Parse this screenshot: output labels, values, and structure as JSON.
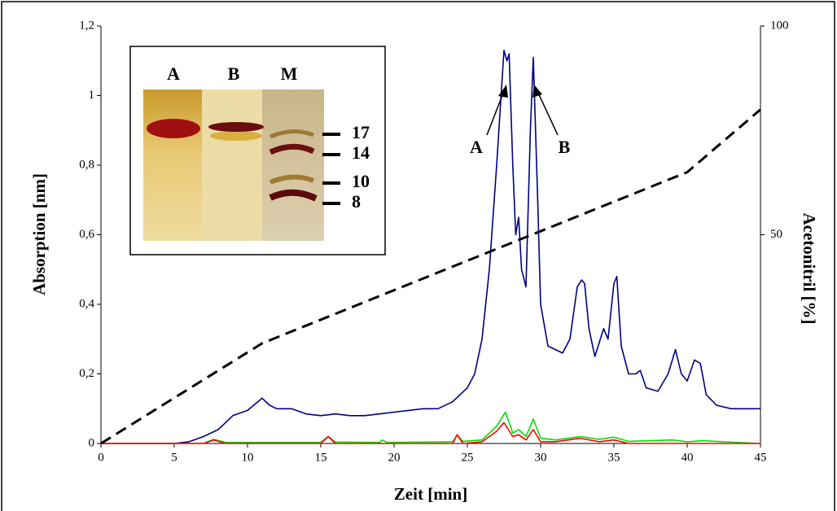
{
  "chart_data": {
    "type": "line",
    "xlabel": "Zeit [min]",
    "ylabel": "Absorption [nm]",
    "y2label": "Acetonitril [%]",
    "xlim": [
      0,
      45
    ],
    "xticks": [
      0,
      5,
      10,
      15,
      20,
      25,
      30,
      35,
      40,
      45
    ],
    "ylim": [
      0,
      1.2
    ],
    "yticks": [
      0,
      {
        "value": 0.2,
        "label": "0,2"
      },
      {
        "value": 0.4,
        "label": "0,4"
      },
      {
        "value": 0.6,
        "label": "0,6"
      },
      {
        "value": 0.8,
        "label": "0,8"
      },
      1,
      {
        "value": 1.2,
        "label": "1,2"
      }
    ],
    "y2lim": [
      0,
      100
    ],
    "y2ticks": [
      50,
      100
    ],
    "series": [
      {
        "color": "#000080",
        "dash": false,
        "x": [
          0,
          5,
          6,
          7,
          8,
          9,
          10,
          11,
          11.5,
          12,
          13,
          14,
          15,
          16,
          17,
          18,
          19,
          20,
          21,
          22,
          23,
          24,
          25,
          25.5,
          26,
          26.5,
          27,
          27.3,
          27.5,
          27.7,
          27.85,
          28.1,
          28.3,
          28.5,
          28.7,
          29,
          29.3,
          29.5,
          29.8,
          30,
          30.5,
          31,
          31.5,
          32,
          32.5,
          32.8,
          33,
          33.3,
          33.7,
          34,
          34.3,
          34.6,
          35,
          35.2,
          35.5,
          36,
          36.5,
          36.8,
          37.2,
          38,
          38.7,
          39.2,
          39.6,
          40,
          40.5,
          40.9,
          41.3,
          42,
          43,
          44,
          45
        ],
        "values": [
          0,
          0,
          0.005,
          0.02,
          0.04,
          0.08,
          0.095,
          0.13,
          0.11,
          0.1,
          0.1,
          0.085,
          0.08,
          0.085,
          0.08,
          0.08,
          0.085,
          0.09,
          0.095,
          0.1,
          0.1,
          0.12,
          0.16,
          0.2,
          0.3,
          0.5,
          0.8,
          1.0,
          1.13,
          1.1,
          1.12,
          0.8,
          0.6,
          0.65,
          0.5,
          0.45,
          0.9,
          1.11,
          0.7,
          0.4,
          0.28,
          0.27,
          0.26,
          0.3,
          0.45,
          0.47,
          0.46,
          0.33,
          0.25,
          0.29,
          0.33,
          0.3,
          0.46,
          0.48,
          0.28,
          0.2,
          0.2,
          0.21,
          0.16,
          0.15,
          0.2,
          0.27,
          0.2,
          0.18,
          0.24,
          0.23,
          0.14,
          0.11,
          0.1,
          0.1,
          0.1
        ]
      },
      {
        "color": "#00e000",
        "dash": false,
        "x": [
          0,
          7,
          7.7,
          8.5,
          15,
          15.5,
          16,
          19,
          19.2,
          19.5,
          24,
          24.3,
          24.7,
          26,
          27,
          27.6,
          28.1,
          28.5,
          29,
          29.5,
          30,
          31,
          32.7,
          34,
          35,
          36,
          39,
          40,
          41,
          45
        ],
        "values": [
          0,
          0,
          0.012,
          0.003,
          0.003,
          0.02,
          0.004,
          0.003,
          0.01,
          0.003,
          0.005,
          0.025,
          0.006,
          0.01,
          0.05,
          0.09,
          0.03,
          0.04,
          0.02,
          0.07,
          0.015,
          0.01,
          0.02,
          0.012,
          0.018,
          0.006,
          0.01,
          0.005,
          0.008,
          0
        ]
      },
      {
        "color": "#ff0000",
        "dash": false,
        "x": [
          0,
          7,
          7.7,
          8.5,
          15,
          15.5,
          16,
          24,
          24.3,
          24.7,
          26,
          27,
          27.5,
          28.1,
          28.5,
          29,
          29.5,
          30,
          31,
          32.7,
          34,
          35,
          36,
          45
        ],
        "values": [
          0,
          0,
          0.01,
          0,
          0,
          0.02,
          0,
          0,
          0.025,
          0,
          0.005,
          0.035,
          0.06,
          0.02,
          0.025,
          0.01,
          0.04,
          0.005,
          0.005,
          0.015,
          0.005,
          0.01,
          0,
          0
        ]
      },
      {
        "color": "#000000",
        "dash": true,
        "axis": "y2",
        "x": [
          0,
          11,
          40,
          45
        ],
        "values": [
          0,
          24,
          65,
          80
        ]
      }
    ],
    "peak_labels": [
      "A",
      "B"
    ],
    "inset": {
      "lanes": [
        "A",
        "B",
        "M"
      ],
      "markers": [
        17,
        14,
        10,
        8
      ]
    }
  }
}
